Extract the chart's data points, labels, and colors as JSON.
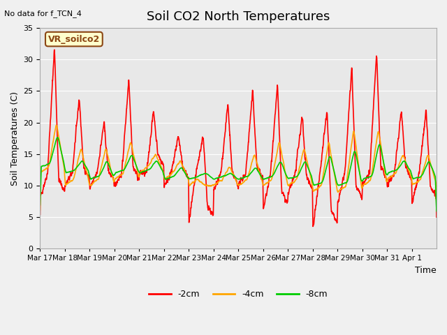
{
  "title": "Soil CO2 North Temperatures",
  "no_data_label": "No data for f_TCN_4",
  "sensor_label": "VR_soilco2",
  "ylabel": "Soil Temperatures (C)",
  "xlabel": "Time",
  "ylim": [
    0,
    35
  ],
  "yticks": [
    0,
    5,
    10,
    15,
    20,
    25,
    30,
    35
  ],
  "xtick_labels": [
    "Mar 17",
    "Mar 18",
    "Mar 19",
    "Mar 20",
    "Mar 21",
    "Mar 22",
    "Mar 23",
    "Mar 24",
    "Mar 25",
    "Mar 26",
    "Mar 27",
    "Mar 28",
    "Mar 29",
    "Mar 30",
    "Mar 31",
    "Apr 1"
  ],
  "plot_bg_color": "#e8e8e8",
  "fig_bg_color": "#f0f0f0",
  "grid_color": "#ffffff",
  "series": {
    "-2cm": {
      "color": "#ff0000",
      "linewidth": 1.2
    },
    "-4cm": {
      "color": "#ffa500",
      "linewidth": 1.2
    },
    "-8cm": {
      "color": "#00cc00",
      "linewidth": 1.2
    }
  },
  "legend_colors": {
    "-2cm": "#ff0000",
    "-4cm": "#ffa500",
    "-8cm": "#00cc00"
  }
}
